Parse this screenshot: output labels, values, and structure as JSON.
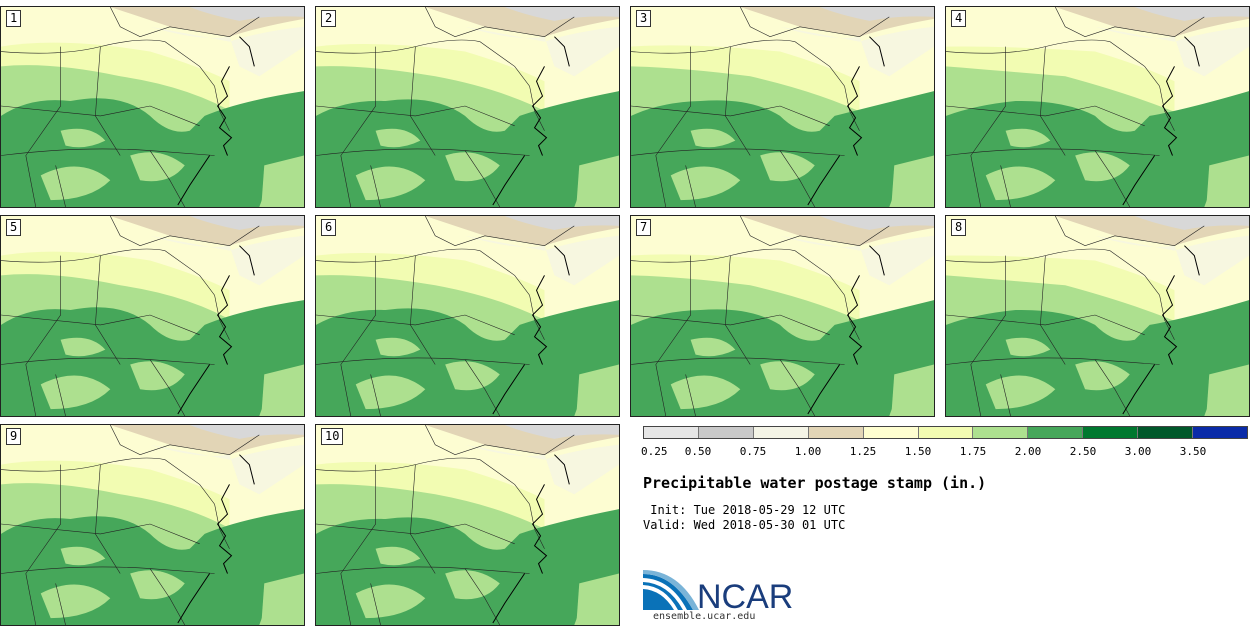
{
  "panels": [
    {
      "label": "1"
    },
    {
      "label": "2"
    },
    {
      "label": "3"
    },
    {
      "label": "4"
    },
    {
      "label": "5"
    },
    {
      "label": "6"
    },
    {
      "label": "7"
    },
    {
      "label": "8"
    },
    {
      "label": "9"
    },
    {
      "label": "10"
    }
  ],
  "colorbar": {
    "colors": [
      "#e6e6e6",
      "#c9c9c9",
      "#f4f4e6",
      "#e2d5b6",
      "#fefed0",
      "#f2fcb2",
      "#ade08f",
      "#46a75a",
      "#00782f",
      "#00582a",
      "#0a2ba8"
    ],
    "ticks": [
      "0.25",
      "0.50",
      "0.75",
      "1.00",
      "1.25",
      "1.50",
      "1.75",
      "2.00",
      "2.50",
      "3.00",
      "3.50"
    ]
  },
  "title": "Precipitable water postage stamp (in.)",
  "init_line": " Init: Tue 2018-05-29 12 UTC",
  "valid_line": "Valid: Wed 2018-05-30 01 UTC",
  "logo": {
    "text": "NCAR",
    "url": "ensemble.ucar.edu"
  }
}
